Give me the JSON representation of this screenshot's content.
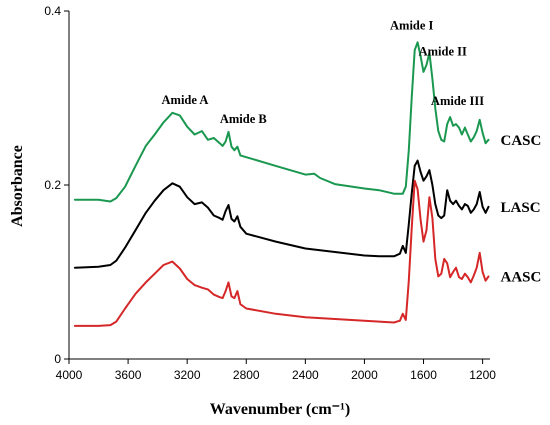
{
  "chart_data": {
    "type": "line",
    "title": "",
    "xlabel": "Wavenumber (cm⁻¹)",
    "ylabel": "Absorbance",
    "xlim": [
      4000,
      1150
    ],
    "ylim": [
      0,
      0.4
    ],
    "x_ticks": [
      4000,
      3600,
      3200,
      2800,
      2400,
      2000,
      1600,
      1200
    ],
    "y_ticks": [
      0,
      0.2,
      0.4
    ],
    "y_tick_labels": [
      "0",
      "0.2",
      "0.4"
    ],
    "grid": false,
    "colors": {
      "CASC": "#1a9850",
      "LASC": "#000000",
      "AASC": "#d62728"
    },
    "series": [
      {
        "name": "CASC",
        "x": [
          3960,
          3800,
          3720,
          3680,
          3620,
          3550,
          3480,
          3420,
          3360,
          3300,
          3250,
          3200,
          3150,
          3100,
          3060,
          3020,
          2980,
          2960,
          2940,
          2920,
          2900,
          2880,
          2860,
          2840,
          2800,
          2600,
          2400,
          2340,
          2300,
          2200,
          2000,
          1900,
          1800,
          1760,
          1740,
          1720,
          1700,
          1680,
          1660,
          1640,
          1620,
          1600,
          1580,
          1560,
          1540,
          1520,
          1500,
          1480,
          1460,
          1440,
          1420,
          1400,
          1380,
          1360,
          1340,
          1320,
          1300,
          1280,
          1260,
          1240,
          1220,
          1200,
          1180,
          1160
        ],
        "y": [
          0.183,
          0.183,
          0.181,
          0.185,
          0.198,
          0.222,
          0.245,
          0.258,
          0.272,
          0.283,
          0.28,
          0.267,
          0.258,
          0.262,
          0.252,
          0.254,
          0.248,
          0.245,
          0.25,
          0.261,
          0.244,
          0.24,
          0.244,
          0.234,
          0.232,
          0.222,
          0.212,
          0.213,
          0.208,
          0.201,
          0.196,
          0.194,
          0.19,
          0.19,
          0.19,
          0.198,
          0.24,
          0.3,
          0.355,
          0.364,
          0.348,
          0.33,
          0.338,
          0.352,
          0.322,
          0.288,
          0.262,
          0.252,
          0.25,
          0.27,
          0.278,
          0.268,
          0.27,
          0.266,
          0.258,
          0.266,
          0.258,
          0.25,
          0.255,
          0.262,
          0.275,
          0.26,
          0.248,
          0.252
        ]
      },
      {
        "name": "LASC",
        "x": [
          3960,
          3800,
          3720,
          3680,
          3620,
          3550,
          3480,
          3420,
          3360,
          3300,
          3250,
          3200,
          3150,
          3100,
          3060,
          3020,
          2980,
          2960,
          2940,
          2920,
          2900,
          2880,
          2860,
          2840,
          2800,
          2600,
          2400,
          2200,
          2000,
          1900,
          1800,
          1760,
          1740,
          1720,
          1700,
          1680,
          1660,
          1640,
          1620,
          1600,
          1580,
          1560,
          1540,
          1520,
          1500,
          1480,
          1460,
          1440,
          1420,
          1400,
          1380,
          1360,
          1340,
          1320,
          1300,
          1280,
          1260,
          1240,
          1220,
          1200,
          1180,
          1160
        ],
        "y": [
          0.105,
          0.106,
          0.108,
          0.113,
          0.128,
          0.148,
          0.168,
          0.182,
          0.194,
          0.202,
          0.198,
          0.186,
          0.178,
          0.18,
          0.174,
          0.165,
          0.162,
          0.16,
          0.17,
          0.177,
          0.161,
          0.158,
          0.164,
          0.152,
          0.144,
          0.135,
          0.127,
          0.123,
          0.119,
          0.118,
          0.118,
          0.121,
          0.13,
          0.122,
          0.155,
          0.19,
          0.222,
          0.228,
          0.215,
          0.205,
          0.21,
          0.217,
          0.2,
          0.178,
          0.165,
          0.162,
          0.165,
          0.194,
          0.182,
          0.178,
          0.182,
          0.176,
          0.172,
          0.178,
          0.176,
          0.168,
          0.172,
          0.178,
          0.192,
          0.175,
          0.168,
          0.175
        ]
      },
      {
        "name": "AASC",
        "x": [
          3960,
          3800,
          3720,
          3680,
          3620,
          3550,
          3480,
          3420,
          3360,
          3300,
          3250,
          3200,
          3150,
          3100,
          3060,
          3020,
          2980,
          2960,
          2940,
          2920,
          2900,
          2880,
          2860,
          2840,
          2800,
          2600,
          2400,
          2200,
          2000,
          1900,
          1800,
          1760,
          1740,
          1720,
          1700,
          1680,
          1660,
          1640,
          1620,
          1600,
          1580,
          1560,
          1540,
          1520,
          1500,
          1480,
          1460,
          1440,
          1420,
          1400,
          1380,
          1360,
          1340,
          1320,
          1300,
          1280,
          1260,
          1240,
          1220,
          1200,
          1180,
          1160
        ],
        "y": [
          0.038,
          0.038,
          0.039,
          0.043,
          0.058,
          0.075,
          0.088,
          0.098,
          0.108,
          0.112,
          0.104,
          0.092,
          0.085,
          0.082,
          0.08,
          0.074,
          0.071,
          0.07,
          0.078,
          0.088,
          0.072,
          0.07,
          0.078,
          0.063,
          0.058,
          0.052,
          0.048,
          0.046,
          0.044,
          0.043,
          0.042,
          0.044,
          0.052,
          0.045,
          0.09,
          0.15,
          0.205,
          0.195,
          0.16,
          0.135,
          0.148,
          0.186,
          0.162,
          0.115,
          0.095,
          0.098,
          0.115,
          0.11,
          0.094,
          0.1,
          0.105,
          0.094,
          0.092,
          0.098,
          0.094,
          0.088,
          0.096,
          0.105,
          0.122,
          0.1,
          0.09,
          0.095
        ]
      }
    ],
    "series_labels": [
      {
        "text": "CASC",
        "series": "CASC"
      },
      {
        "text": "LASC",
        "series": "LASC"
      },
      {
        "text": "AASC",
        "series": "AASC"
      }
    ],
    "annotations": [
      {
        "text": "Amide A",
        "x": 3215,
        "y": 0.293
      },
      {
        "text": "Amide B",
        "x": 2820,
        "y": 0.271
      },
      {
        "text": "Amide I",
        "x": 1680,
        "y": 0.379
      },
      {
        "text": "Amide II",
        "x": 1470,
        "y": 0.349
      },
      {
        "text": "Amide III",
        "x": 1370,
        "y": 0.292
      }
    ]
  }
}
